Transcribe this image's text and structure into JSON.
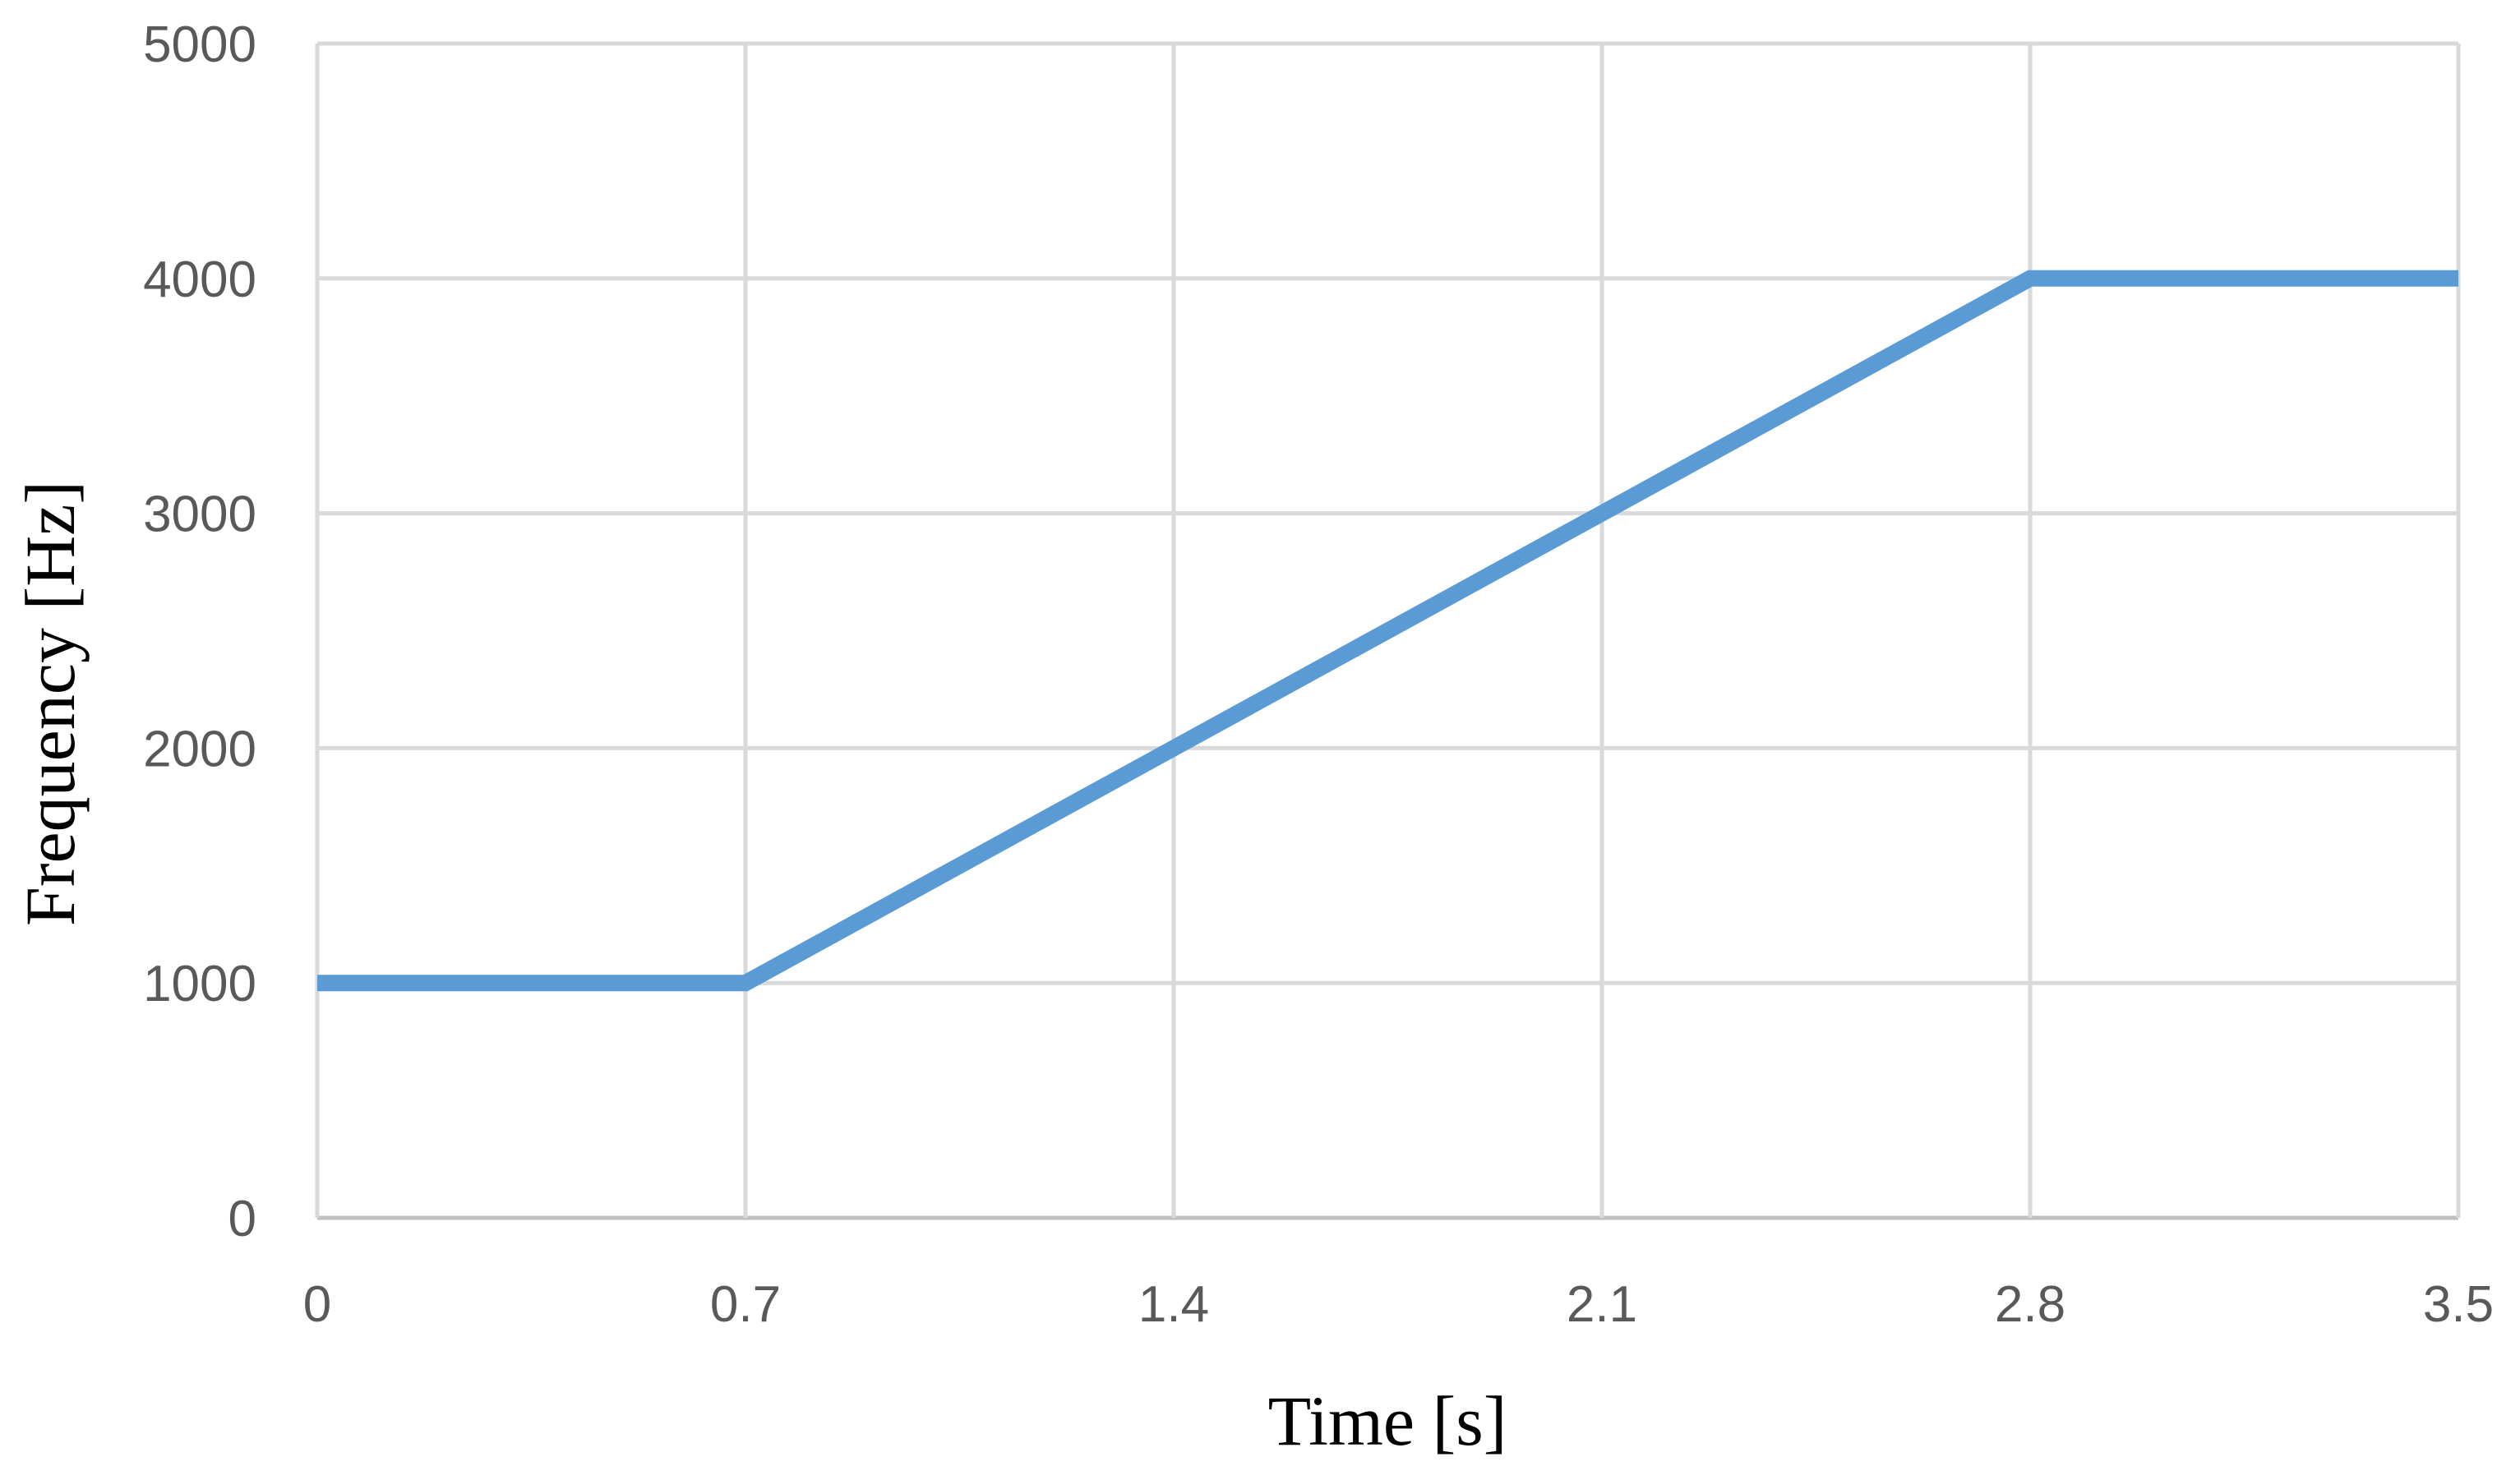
{
  "chart_data": {
    "type": "line",
    "title": "",
    "xlabel": "Time [s]",
    "ylabel": "Frequency [Hz]",
    "xlim": [
      0,
      3.5
    ],
    "ylim": [
      0,
      5000
    ],
    "x_ticks": [
      "0",
      "0.7",
      "1.4",
      "2.1",
      "2.8",
      "3.5"
    ],
    "y_ticks": [
      "0",
      "1000",
      "2000",
      "3000",
      "4000",
      "5000"
    ],
    "grid": true,
    "legend": "none",
    "series": [
      {
        "color": "#5B9BD5",
        "x": [
          0,
          0.7,
          1.4,
          2.1,
          2.8,
          3.5
        ],
        "y": [
          1000,
          1000,
          2000,
          3000,
          4000,
          4000
        ]
      }
    ]
  }
}
